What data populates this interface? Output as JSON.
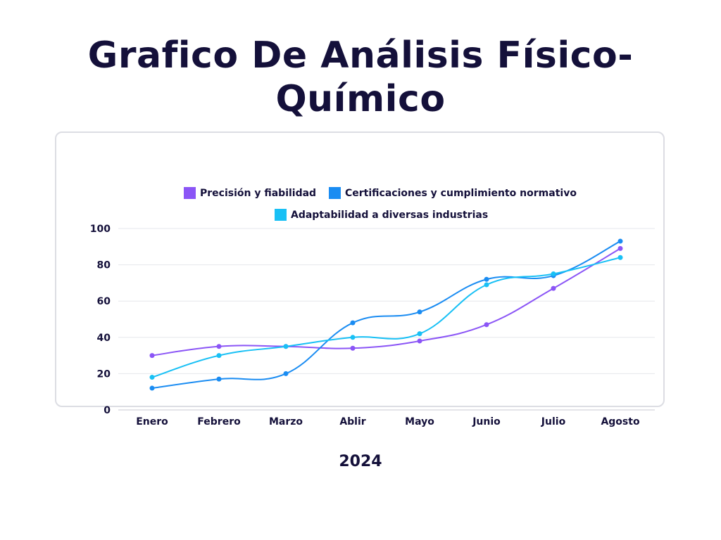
{
  "title_line1": "Grafico De Análisis Físico-",
  "title_line2": "Químico",
  "year_label": "2024",
  "chart_data": {
    "type": "line",
    "categories": [
      "Enero",
      "Febrero",
      "Marzo",
      "Ablir",
      "Mayo",
      "Junio",
      "Julio",
      "Agosto"
    ],
    "ylim": [
      0,
      100
    ],
    "yticks": [
      0,
      20,
      40,
      60,
      80,
      100
    ],
    "grid": true,
    "legend_position": "top",
    "series": [
      {
        "name": "Precisión y fiabilidad",
        "color": "#8b55f6",
        "values": [
          30,
          35,
          35,
          34,
          38,
          47,
          67,
          89
        ]
      },
      {
        "name": "Certificaciones y cumplimiento normativo",
        "color": "#1a8cf2",
        "values": [
          12,
          17,
          20,
          48,
          54,
          72,
          74,
          93
        ]
      },
      {
        "name": "Adaptabilidad a diversas industrias",
        "color": "#18c0f5",
        "values": [
          18,
          30,
          35,
          40,
          42,
          69,
          75,
          84
        ]
      }
    ]
  }
}
